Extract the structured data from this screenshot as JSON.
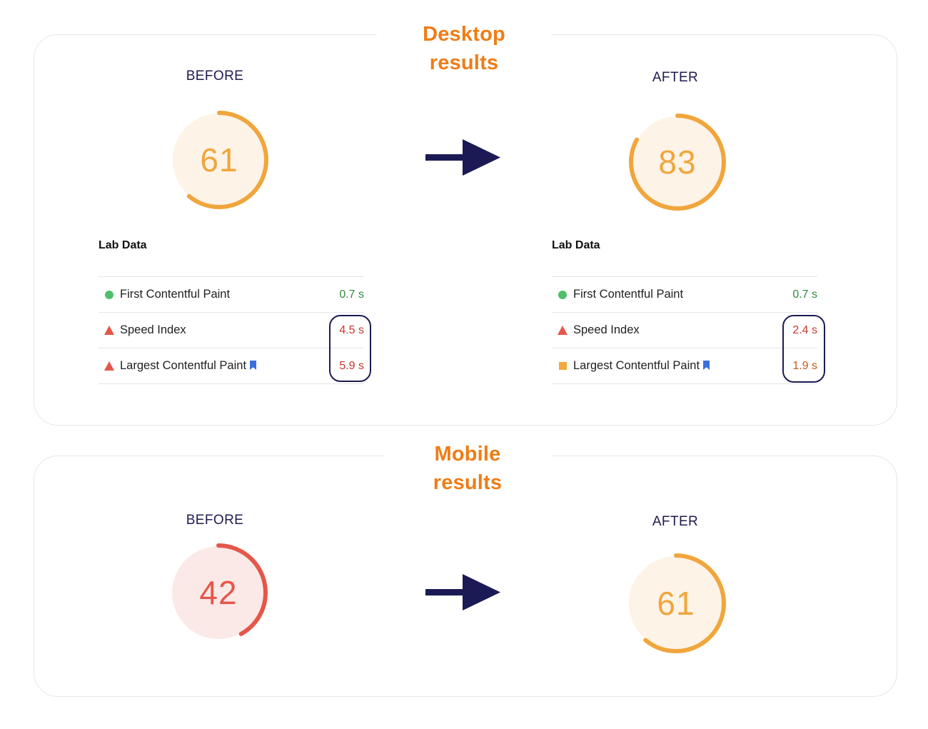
{
  "desktop": {
    "title": "Desktop results",
    "before": {
      "label": "BEFORE",
      "score": "61",
      "score_fraction": 0.61,
      "lab_title": "Lab Data",
      "metrics": [
        {
          "name": "First Contentful Paint",
          "value": "0.7 s",
          "indicator": "circle",
          "color": "#2f8a3f",
          "bookmark": false
        },
        {
          "name": "Speed Index",
          "value": "4.5 s",
          "indicator": "triangle",
          "color": "#c7382b",
          "bookmark": false
        },
        {
          "name": "Largest Contentful Paint",
          "value": "5.9 s",
          "indicator": "triangle",
          "color": "#c7382b",
          "bookmark": true
        }
      ]
    },
    "after": {
      "label": "AFTER",
      "score": "83",
      "score_fraction": 0.83,
      "lab_title": "Lab Data",
      "metrics": [
        {
          "name": "First Contentful Paint",
          "value": "0.7 s",
          "indicator": "circle",
          "color": "#2f8a3f",
          "bookmark": false
        },
        {
          "name": "Speed Index",
          "value": "2.4 s",
          "indicator": "triangle",
          "color": "#c7382b",
          "bookmark": false
        },
        {
          "name": "Largest Contentful Paint",
          "value": "1.9 s",
          "indicator": "square",
          "color": "#c05a1e",
          "bookmark": true
        }
      ]
    }
  },
  "mobile": {
    "title": "Mobile results",
    "before": {
      "label": "BEFORE",
      "score": "42",
      "score_fraction": 0.42
    },
    "after": {
      "label": "AFTER",
      "score": "61",
      "score_fraction": 0.61
    }
  },
  "colors": {
    "accent_orange": "#ee7d16",
    "gauge_orange": "#f0a63c",
    "gauge_orange_bg": "#fdf3e6",
    "gauge_red": "#e4574a",
    "gauge_red_bg": "#fbe9e7",
    "navy": "#1b1a55",
    "pass_green": "#2f8a3f",
    "fail_red": "#c7382b"
  },
  "icons": {
    "arrow": "right-arrow-icon",
    "bookmark": "bookmark-icon",
    "pass": "green-circle-icon",
    "fail": "red-triangle-icon",
    "average": "orange-square-icon"
  }
}
